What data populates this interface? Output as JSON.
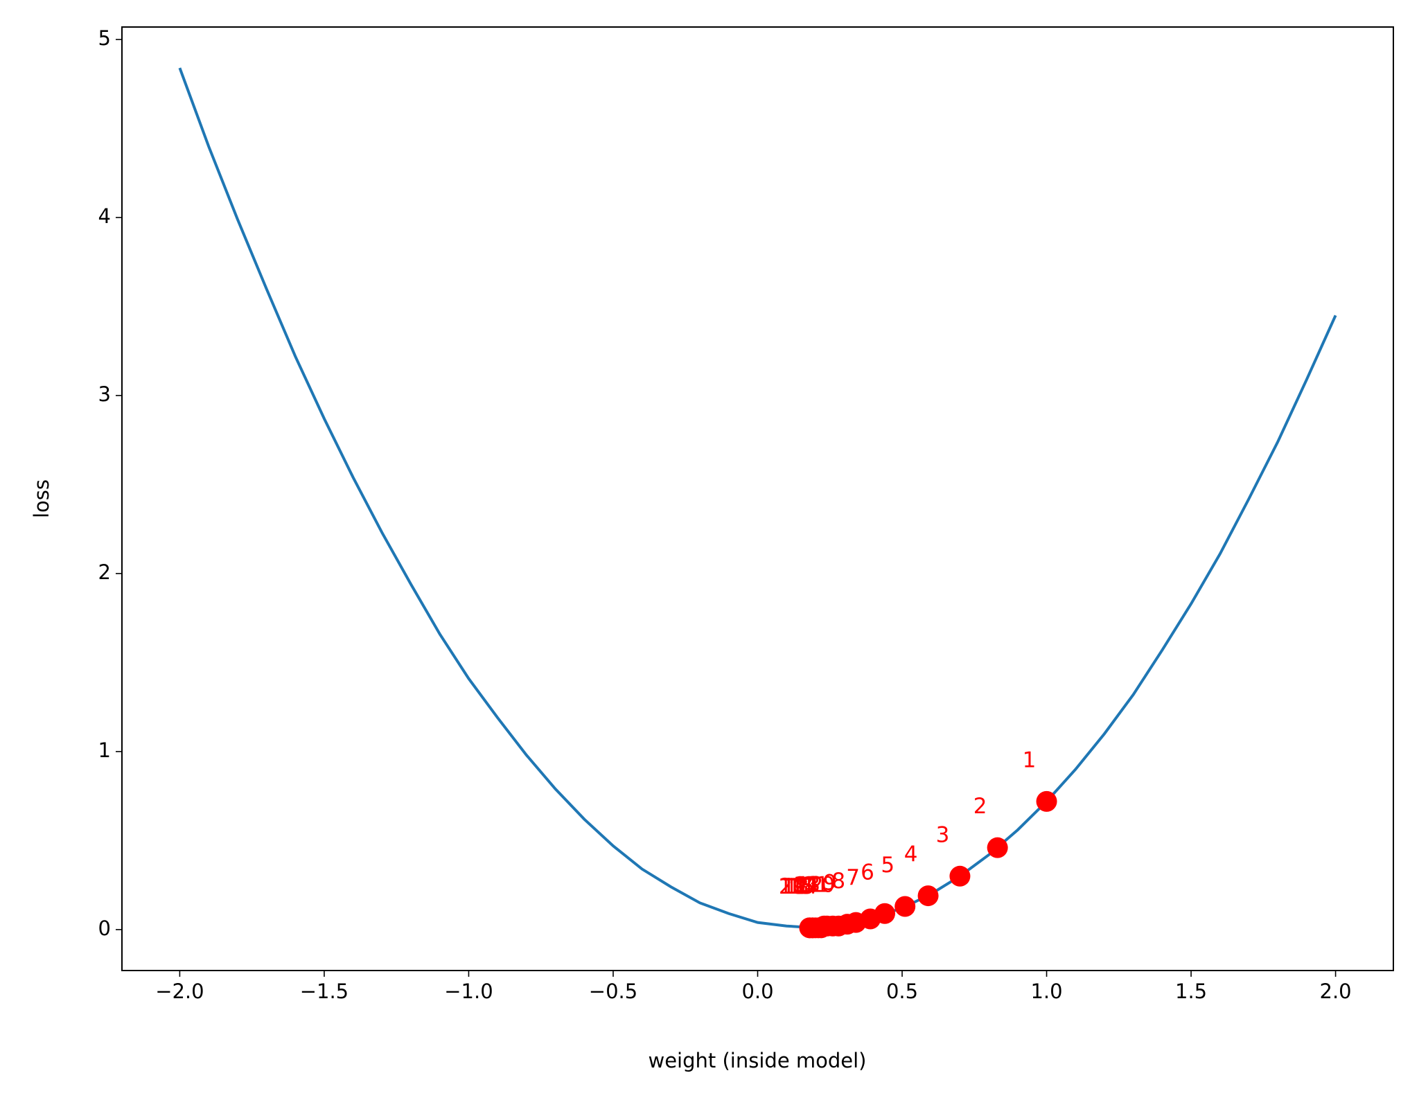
{
  "chart_data": {
    "type": "line",
    "xlabel": "weight (inside model)",
    "ylabel": "loss",
    "x": [
      -2.0,
      -1.9,
      -1.8,
      -1.7,
      -1.6,
      -1.5,
      -1.4,
      -1.3,
      -1.2,
      -1.1,
      -1.0,
      -0.9,
      -0.8,
      -0.7,
      -0.6,
      -0.5,
      -0.4,
      -0.3,
      -0.2,
      -0.1,
      0.0,
      0.1,
      0.2,
      0.3,
      0.4,
      0.5,
      0.6,
      0.7,
      0.8,
      0.9,
      1.0,
      1.1,
      1.2,
      1.3,
      1.4,
      1.5,
      1.6,
      1.7,
      1.8,
      1.9,
      2.0
    ],
    "series": [
      {
        "color": "#1f77b4",
        "values": [
          4.84,
          4.4,
          3.99,
          3.6,
          3.22,
          2.87,
          2.54,
          2.23,
          1.94,
          1.66,
          1.41,
          1.19,
          0.98,
          0.79,
          0.62,
          0.47,
          0.34,
          0.24,
          0.15,
          0.09,
          0.04,
          0.02,
          0.01,
          0.03,
          0.07,
          0.12,
          0.2,
          0.3,
          0.42,
          0.56,
          0.72,
          0.9,
          1.1,
          1.32,
          1.57,
          1.83,
          2.11,
          2.42,
          2.74,
          3.09,
          3.45
        ]
      }
    ],
    "points": {
      "color": "#ff0000",
      "x": [
        1.0,
        0.83,
        0.7,
        0.59,
        0.51,
        0.44,
        0.39,
        0.34,
        0.31,
        0.28,
        0.26,
        0.24,
        0.23,
        0.22,
        0.21,
        0.2,
        0.19,
        0.19,
        0.18,
        0.18
      ],
      "values": [
        0.72,
        0.46,
        0.3,
        0.19,
        0.13,
        0.09,
        0.06,
        0.04,
        0.03,
        0.02,
        0.02,
        0.02,
        0.02,
        0.01,
        0.01,
        0.01,
        0.01,
        0.01,
        0.01,
        0.01
      ],
      "labels": [
        "1",
        "2",
        "3",
        "4",
        "5",
        "6",
        "7",
        "8",
        "9",
        "10",
        "11",
        "12",
        "13",
        "14",
        "15",
        "16",
        "17",
        "18",
        "19",
        "20"
      ]
    },
    "xlim": [
      -2.2,
      2.2
    ],
    "ylim": [
      -0.23,
      5.07
    ],
    "xticks": [
      {
        "value": -2.0,
        "label": "−2.0"
      },
      {
        "value": -1.5,
        "label": "−1.5"
      },
      {
        "value": -1.0,
        "label": "−1.0"
      },
      {
        "value": -0.5,
        "label": "−0.5"
      },
      {
        "value": 0.0,
        "label": "0.0"
      },
      {
        "value": 0.5,
        "label": "0.5"
      },
      {
        "value": 1.0,
        "label": "1.0"
      },
      {
        "value": 1.5,
        "label": "1.5"
      },
      {
        "value": 2.0,
        "label": "2.0"
      }
    ],
    "yticks": [
      0,
      1,
      2,
      3,
      4,
      5
    ],
    "grid": false
  }
}
